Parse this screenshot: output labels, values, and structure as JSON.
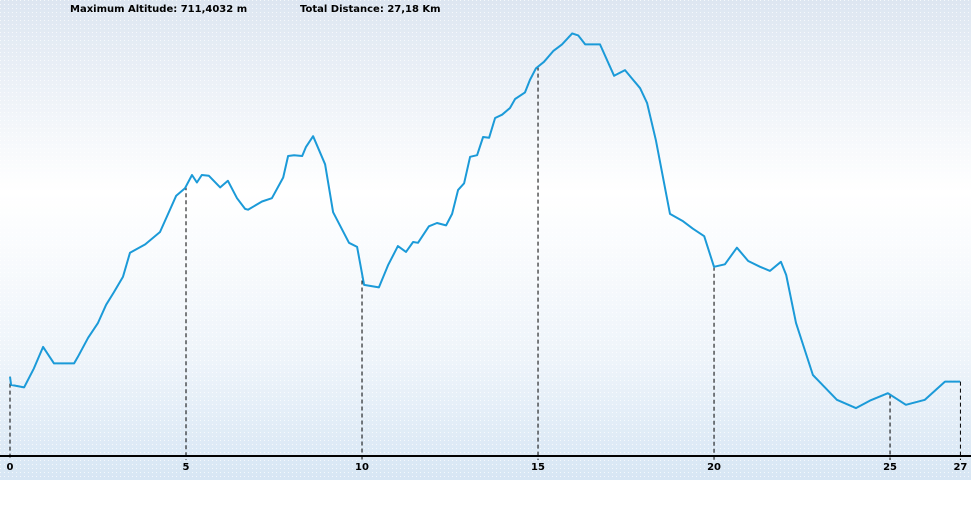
{
  "chart_data": {
    "type": "line",
    "annotations": [
      "Maximum Altitude: 711,4032 m",
      "Total Distance: 27,18 Km"
    ],
    "x": [
      0,
      0.03,
      0.4,
      0.68,
      0.94,
      1.25,
      1.82,
      1.93,
      2.22,
      2.5,
      2.73,
      2.95,
      3.21,
      3.41,
      3.84,
      4.26,
      4.49,
      4.72,
      4.97,
      5.17,
      5.31,
      5.45,
      5.65,
      5.97,
      6.19,
      6.45,
      6.68,
      6.76,
      7.16,
      7.44,
      7.76,
      7.9,
      8.07,
      8.3,
      8.41,
      8.61,
      8.95,
      9.18,
      9.63,
      9.86,
      10.06,
      10.48,
      10.74,
      11.02,
      11.25,
      11.45,
      11.59,
      11.9,
      12.13,
      12.39,
      12.56,
      12.73,
      12.9,
      13.07,
      13.27,
      13.44,
      13.61,
      13.78,
      13.98,
      14.2,
      14.35,
      14.63,
      14.77,
      14.94,
      15.17,
      15.43,
      15.68,
      15.97,
      16.14,
      16.34,
      16.76,
      17.16,
      17.47,
      17.9,
      18.1,
      18.35,
      18.75,
      19.12,
      19.4,
      19.72,
      20,
      20.31,
      20.65,
      20.97,
      21.31,
      21.59,
      21.9,
      22.05,
      22.33,
      22.81,
      23.49,
      24.03,
      24.43,
      24.94,
      25.45,
      25.99,
      26.56,
      26.99
    ],
    "values": [
      296,
      286,
      283,
      306,
      332,
      312,
      312,
      320,
      343,
      361,
      383,
      398,
      417,
      446,
      456,
      471,
      493,
      515,
      524,
      540,
      531,
      540,
      539,
      525,
      533,
      512,
      499,
      498,
      508,
      512,
      537,
      563,
      564,
      563,
      574,
      587,
      553,
      495,
      458,
      453,
      407,
      404,
      431,
      454,
      447,
      459,
      458,
      478,
      482,
      479,
      493,
      522,
      530,
      562,
      564,
      586,
      585,
      609,
      613,
      621,
      632,
      640,
      655,
      669,
      677,
      690,
      698,
      711.4,
      709,
      698,
      698,
      660,
      667,
      645,
      627,
      582,
      493,
      484,
      475,
      466,
      429,
      432,
      452,
      436,
      429,
      424,
      435,
      419,
      361,
      298,
      268,
      258,
      267,
      276,
      262,
      268,
      290,
      290
    ],
    "color": "#1b9ad8",
    "xlim": [
      0,
      27.3
    ],
    "xticks": [
      0,
      5,
      10,
      15,
      20,
      25,
      27
    ],
    "ylim": [
      200,
      730
    ]
  }
}
